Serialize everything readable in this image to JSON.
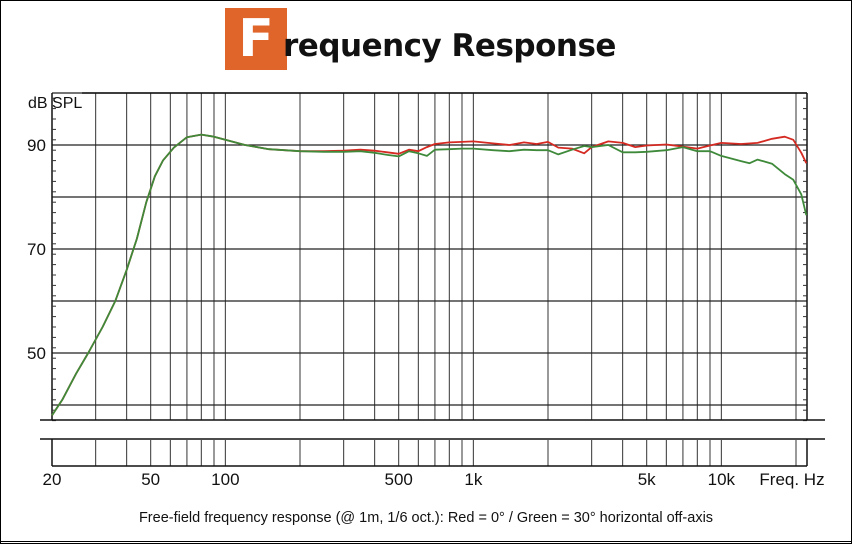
{
  "title": {
    "initial": "F",
    "rest": "requency Response",
    "accent_color": "#e0652b"
  },
  "caption": "Free-field frequency response (@ 1m, 1/6 oct.): Red = 0° / Green = 30° horizontal off-axis",
  "chart_data": {
    "type": "line",
    "title": "Frequency Response",
    "xlabel": "Freq. Hz",
    "ylabel": "dB SPL",
    "xscale": "log",
    "xlim": [
      20,
      22000
    ],
    "ylim": [
      35,
      100
    ],
    "x_tick_labels": [
      "20",
      "50",
      "100",
      "500",
      "1k",
      "5k",
      "10k"
    ],
    "x_tick_values": [
      20,
      50,
      100,
      500,
      1000,
      5000,
      10000
    ],
    "y_tick_labels": [
      "90",
      "70",
      "50"
    ],
    "y_tick_values": [
      90,
      70,
      50
    ],
    "grid": true,
    "legend": "caption: Red = 0° / Green = 30° horizontal off-axis",
    "series": [
      {
        "name": "0° (on-axis)",
        "color": "#d42a22",
        "points": [
          [
            20,
            38
          ],
          [
            22,
            41
          ],
          [
            25,
            46
          ],
          [
            28,
            50
          ],
          [
            32,
            55
          ],
          [
            36,
            60
          ],
          [
            40,
            66
          ],
          [
            44,
            72
          ],
          [
            48,
            79
          ],
          [
            52,
            84
          ],
          [
            56,
            87
          ],
          [
            62,
            89.5
          ],
          [
            70,
            91.5
          ],
          [
            80,
            92
          ],
          [
            90,
            91.6
          ],
          [
            100,
            91
          ],
          [
            120,
            90
          ],
          [
            150,
            89.2
          ],
          [
            200,
            88.8
          ],
          [
            250,
            88.8
          ],
          [
            300,
            88.9
          ],
          [
            350,
            89.1
          ],
          [
            400,
            88.9
          ],
          [
            450,
            88.6
          ],
          [
            500,
            88.3
          ],
          [
            550,
            89.1
          ],
          [
            600,
            88.8
          ],
          [
            650,
            89.6
          ],
          [
            700,
            90.2
          ],
          [
            800,
            90.5
          ],
          [
            900,
            90.6
          ],
          [
            1000,
            90.7
          ],
          [
            1200,
            90.3
          ],
          [
            1400,
            90.0
          ],
          [
            1600,
            90.5
          ],
          [
            1800,
            90.2
          ],
          [
            2000,
            90.6
          ],
          [
            2200,
            89.5
          ],
          [
            2500,
            89.3
          ],
          [
            2800,
            88.4
          ],
          [
            3000,
            89.6
          ],
          [
            3500,
            90.7
          ],
          [
            4000,
            90.4
          ],
          [
            4500,
            89.6
          ],
          [
            5000,
            89.9
          ],
          [
            6000,
            90.1
          ],
          [
            7000,
            89.7
          ],
          [
            8000,
            89.3
          ],
          [
            9000,
            89.9
          ],
          [
            10000,
            90.4
          ],
          [
            12000,
            90.2
          ],
          [
            14000,
            90.4
          ],
          [
            16000,
            91.2
          ],
          [
            18000,
            91.6
          ],
          [
            19500,
            91.0
          ],
          [
            21000,
            88.5
          ],
          [
            22000,
            86.5
          ]
        ]
      },
      {
        "name": "30° horizontal off-axis",
        "color": "#3e8a3a",
        "points": [
          [
            20,
            38
          ],
          [
            22,
            41
          ],
          [
            25,
            46
          ],
          [
            28,
            50
          ],
          [
            32,
            55
          ],
          [
            36,
            60
          ],
          [
            40,
            66
          ],
          [
            44,
            72
          ],
          [
            48,
            79
          ],
          [
            52,
            84
          ],
          [
            56,
            87
          ],
          [
            62,
            89.5
          ],
          [
            70,
            91.5
          ],
          [
            80,
            92
          ],
          [
            90,
            91.6
          ],
          [
            100,
            91
          ],
          [
            120,
            90
          ],
          [
            150,
            89.2
          ],
          [
            200,
            88.8
          ],
          [
            250,
            88.7
          ],
          [
            300,
            88.7
          ],
          [
            350,
            88.8
          ],
          [
            400,
            88.5
          ],
          [
            450,
            88.1
          ],
          [
            500,
            87.8
          ],
          [
            550,
            88.8
          ],
          [
            600,
            88.4
          ],
          [
            650,
            87.9
          ],
          [
            700,
            89.1
          ],
          [
            800,
            89.2
          ],
          [
            900,
            89.3
          ],
          [
            1000,
            89.3
          ],
          [
            1200,
            89.0
          ],
          [
            1400,
            88.8
          ],
          [
            1600,
            89.1
          ],
          [
            1800,
            89.0
          ],
          [
            2000,
            89.0
          ],
          [
            2200,
            88.2
          ],
          [
            2500,
            89.1
          ],
          [
            2800,
            89.8
          ],
          [
            3000,
            89.6
          ],
          [
            3500,
            90.0
          ],
          [
            4000,
            88.6
          ],
          [
            4500,
            88.6
          ],
          [
            5000,
            88.7
          ],
          [
            6000,
            89.0
          ],
          [
            7000,
            89.6
          ],
          [
            8000,
            88.8
          ],
          [
            9000,
            88.8
          ],
          [
            10000,
            87.9
          ],
          [
            12000,
            86.9
          ],
          [
            13000,
            86.5
          ],
          [
            14000,
            87.2
          ],
          [
            16000,
            86.4
          ],
          [
            18000,
            84.4
          ],
          [
            19500,
            83.3
          ],
          [
            21000,
            80.5
          ],
          [
            22000,
            76.5
          ]
        ]
      }
    ]
  }
}
